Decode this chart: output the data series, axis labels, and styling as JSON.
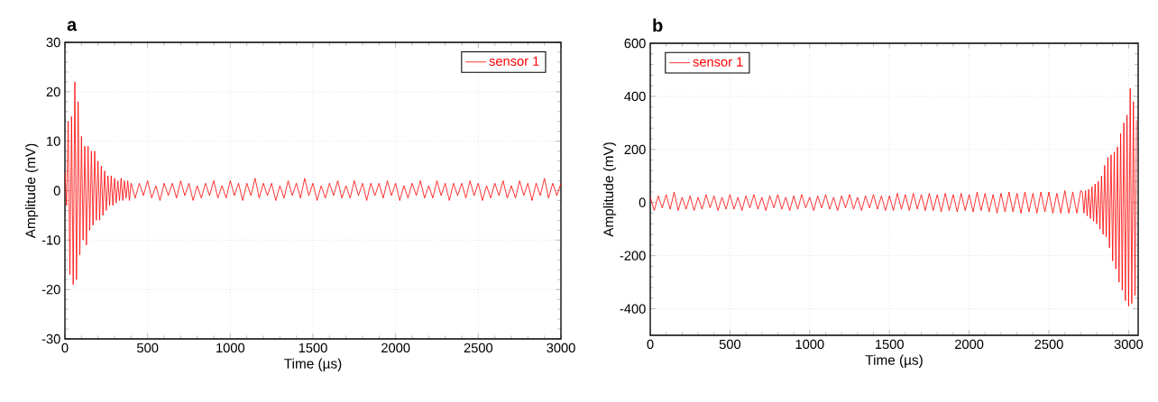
{
  "chart_data": [
    {
      "type": "line",
      "title": "a",
      "xlabel": "Time (µs)",
      "ylabel": "Amplitude (mV)",
      "xlim": [
        0,
        3000
      ],
      "ylim": [
        -30,
        30
      ],
      "xticks": [
        0,
        500,
        1000,
        1500,
        2000,
        2500,
        3000
      ],
      "yticks": [
        -30,
        -20,
        -10,
        0,
        10,
        20,
        30
      ],
      "grid": true,
      "legend": "top right",
      "marker": "none",
      "line_style": "solid",
      "series": [
        {
          "name": "sensor 1",
          "color": "#ff0000",
          "x": [
            0,
            10,
            20,
            30,
            40,
            50,
            60,
            70,
            80,
            90,
            100,
            110,
            120,
            130,
            140,
            150,
            160,
            170,
            180,
            190,
            200,
            210,
            220,
            230,
            240,
            250,
            260,
            270,
            280,
            290,
            300,
            310,
            320,
            330,
            340,
            350,
            360,
            370,
            380,
            390,
            400,
            425,
            450,
            475,
            500,
            525,
            550,
            575,
            600,
            625,
            650,
            675,
            700,
            725,
            750,
            775,
            800,
            825,
            850,
            875,
            900,
            925,
            950,
            975,
            1000,
            1025,
            1050,
            1075,
            1100,
            1125,
            1150,
            1175,
            1200,
            1225,
            1250,
            1275,
            1300,
            1325,
            1350,
            1375,
            1400,
            1425,
            1450,
            1475,
            1500,
            1525,
            1550,
            1575,
            1600,
            1625,
            1650,
            1675,
            1700,
            1725,
            1750,
            1775,
            1800,
            1825,
            1850,
            1875,
            1900,
            1925,
            1950,
            1975,
            2000,
            2025,
            2050,
            2075,
            2100,
            2125,
            2150,
            2175,
            2200,
            2225,
            2250,
            2275,
            2300,
            2325,
            2350,
            2375,
            2400,
            2425,
            2450,
            2475,
            2500,
            2525,
            2550,
            2575,
            2600,
            2625,
            2650,
            2675,
            2700,
            2725,
            2750,
            2775,
            2800,
            2825,
            2850,
            2875,
            2900,
            2925,
            2950,
            2975,
            3000
          ],
          "values": [
            4,
            -3,
            14,
            -17,
            15,
            -19,
            22,
            -18,
            18,
            -13,
            11,
            -10,
            9,
            -11,
            9,
            -8,
            8,
            -7,
            8,
            -6,
            6,
            -6,
            5,
            -5,
            4,
            -4,
            3,
            -3,
            3,
            -3,
            2.5,
            -2.5,
            2,
            -2,
            2.5,
            -2,
            2,
            -1.5,
            2,
            -2,
            1.5,
            -1.5,
            1.5,
            -1,
            2,
            -1.5,
            1,
            -2,
            1.5,
            -1,
            1.5,
            -1.5,
            2,
            -1,
            1.5,
            -2,
            1,
            -1.5,
            1.5,
            -1,
            2,
            -1.5,
            1,
            -1.5,
            2,
            -1,
            1.5,
            -2,
            1.5,
            -1,
            2.5,
            -1.5,
            1.5,
            -1,
            1.5,
            -2,
            1,
            -1.5,
            2,
            -1,
            1.5,
            -1.5,
            2.5,
            -1,
            1.5,
            -2,
            1,
            -1.5,
            1.5,
            -1,
            2,
            -1.5,
            1,
            -1.5,
            2,
            -1,
            1.5,
            -2,
            1.5,
            -1,
            1.5,
            -1.5,
            2,
            -1,
            1.5,
            -2,
            1,
            -1.5,
            1.5,
            -1,
            2,
            -1.5,
            1,
            -1.5,
            2,
            -1,
            1.5,
            -2,
            1.5,
            -1,
            1.5,
            -1.5,
            2,
            -1,
            1.5,
            -2,
            1,
            -1.5,
            1.5,
            -1,
            2,
            -1.5,
            1,
            -1.5,
            2,
            -1,
            1.5,
            -2,
            1.5,
            -1,
            2.5,
            -1.5,
            1.5,
            -1,
            1.5
          ]
        }
      ]
    },
    {
      "type": "line",
      "title": "b",
      "xlabel": "Time (µs)",
      "ylabel": "Amplitude (mV)",
      "xlim": [
        0,
        3060
      ],
      "ylim": [
        -500,
        600
      ],
      "xticks": [
        0,
        500,
        1000,
        1500,
        2000,
        2500,
        3000
      ],
      "yticks": [
        -400,
        -200,
        0,
        200,
        400,
        600
      ],
      "grid": true,
      "legend": "top left",
      "marker": "none",
      "line_style": "solid",
      "series": [
        {
          "name": "sensor 1",
          "color": "#ff0000",
          "x": [
            0,
            25,
            50,
            75,
            100,
            125,
            150,
            175,
            200,
            225,
            250,
            275,
            300,
            325,
            350,
            375,
            400,
            425,
            450,
            475,
            500,
            525,
            550,
            575,
            600,
            625,
            650,
            675,
            700,
            725,
            750,
            775,
            800,
            825,
            850,
            875,
            900,
            925,
            950,
            975,
            1000,
            1025,
            1050,
            1075,
            1100,
            1125,
            1150,
            1175,
            1200,
            1225,
            1250,
            1275,
            1300,
            1325,
            1350,
            1375,
            1400,
            1425,
            1450,
            1475,
            1500,
            1525,
            1550,
            1575,
            1600,
            1625,
            1650,
            1675,
            1700,
            1725,
            1750,
            1775,
            1800,
            1825,
            1850,
            1875,
            1900,
            1925,
            1950,
            1975,
            2000,
            2025,
            2050,
            2075,
            2100,
            2125,
            2150,
            2175,
            2200,
            2225,
            2250,
            2275,
            2300,
            2325,
            2350,
            2375,
            2400,
            2425,
            2450,
            2475,
            2500,
            2525,
            2550,
            2575,
            2600,
            2625,
            2650,
            2675,
            2700,
            2710,
            2720,
            2730,
            2740,
            2750,
            2760,
            2770,
            2780,
            2790,
            2800,
            2810,
            2820,
            2830,
            2840,
            2850,
            2860,
            2870,
            2880,
            2890,
            2900,
            2910,
            2920,
            2930,
            2940,
            2950,
            2960,
            2970,
            2980,
            2990,
            3000,
            3010,
            3020,
            3030,
            3040,
            3050
          ],
          "values": [
            20,
            -30,
            25,
            -20,
            30,
            -25,
            40,
            -30,
            20,
            -25,
            25,
            -30,
            20,
            -25,
            30,
            -20,
            25,
            -30,
            20,
            -25,
            30,
            -25,
            20,
            -30,
            25,
            -20,
            30,
            -25,
            20,
            -30,
            25,
            -20,
            30,
            -25,
            20,
            -30,
            25,
            -25,
            30,
            -20,
            20,
            -30,
            25,
            -20,
            30,
            -25,
            20,
            -30,
            25,
            -20,
            30,
            -25,
            20,
            -30,
            25,
            -20,
            30,
            -25,
            25,
            -30,
            25,
            -30,
            35,
            -25,
            30,
            -30,
            35,
            -25,
            30,
            -30,
            35,
            -30,
            30,
            -35,
            35,
            -30,
            30,
            -35,
            35,
            -30,
            30,
            -35,
            40,
            -30,
            35,
            -35,
            30,
            -40,
            35,
            -35,
            40,
            -35,
            35,
            -40,
            40,
            -35,
            35,
            -40,
            40,
            -35,
            40,
            -40,
            35,
            -40,
            45,
            -40,
            40,
            -40,
            45,
            40,
            -40,
            45,
            -50,
            50,
            -60,
            60,
            -70,
            70,
            -80,
            80,
            -100,
            100,
            -120,
            140,
            -130,
            170,
            -170,
            180,
            -220,
            190,
            -250,
            210,
            -300,
            260,
            -330,
            300,
            -370,
            330,
            -390,
            430,
            -380,
            380,
            -350,
            310
          ]
        }
      ]
    }
  ]
}
